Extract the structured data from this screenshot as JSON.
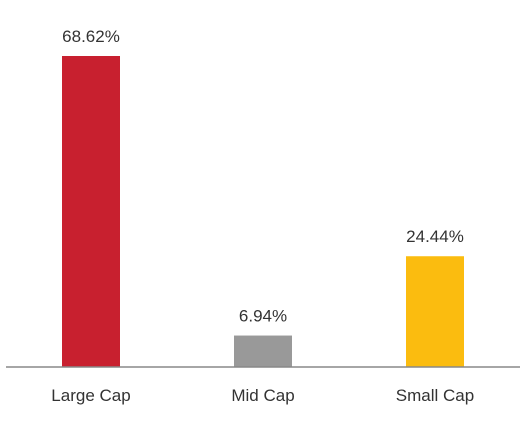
{
  "chart_data": {
    "type": "bar",
    "categories": [
      "Large Cap",
      "Mid Cap",
      "Small Cap"
    ],
    "values": [
      68.62,
      6.94,
      24.44
    ],
    "value_labels": [
      "68.62%",
      "6.94%",
      "24.44%"
    ],
    "colors": [
      "#c8202f",
      "#999999",
      "#fbbc0f"
    ],
    "title": "",
    "xlabel": "",
    "ylabel": "",
    "ylim": [
      0,
      68.62
    ],
    "grid": false,
    "legend": "none"
  }
}
